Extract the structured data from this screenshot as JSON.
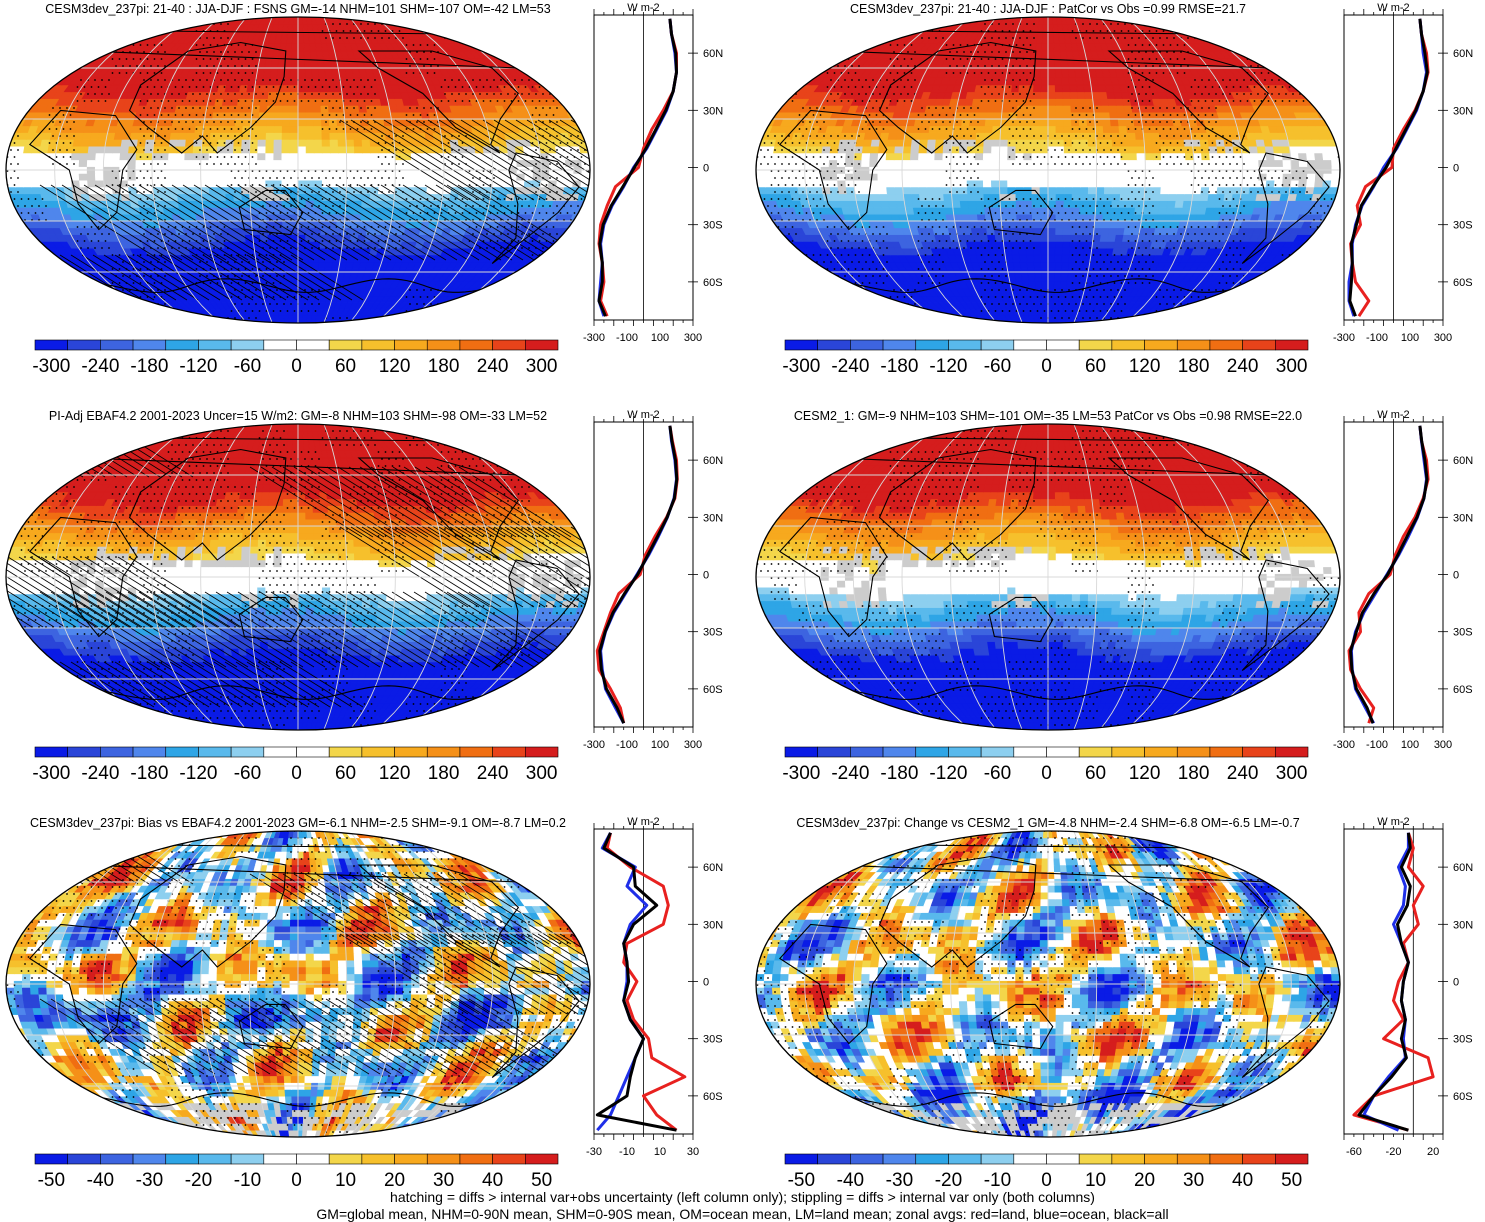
{
  "legend_colors": {
    "diverging_12": [
      "#0a1be6",
      "#2a45d8",
      "#3d64e0",
      "#4f86ec",
      "#2ea5e6",
      "#59b9ec",
      "#8dcfef",
      "#ffffff",
      "#ffffff",
      "#f3d64a",
      "#f6c02c",
      "#f7a91e",
      "#f59018",
      "#f06e12",
      "#e8431a",
      "#d51d1d"
    ],
    "land_grey": "#cccccc"
  },
  "zonal_line_colors": {
    "land": "#e8211f",
    "ocean": "#1f2fe8",
    "all": "#000000"
  },
  "footer": {
    "line1": "hatching = diffs > internal var+obs uncertainty (left column only); stippling = diffs > internal var only (both columns)",
    "line2": "GM=global mean, NHM=0-90N mean, SHM=0-90S mean, OM=ocean mean, LM=land mean; zonal avgs: red=land, blue=ocean, black=all"
  },
  "panels": [
    {
      "id": "p1",
      "title": "CESM3dev_237pi: 21-40 : JJA-DJF : FSNS GM=-14 NHM=101 SHM=-107 OM=-42 LM=53",
      "map_field": "seasonal",
      "hatched": true,
      "colorbar_ticks": [
        "-300",
        "-240",
        "-180",
        "-120",
        "-60",
        "0",
        "60",
        "120",
        "180",
        "240",
        "300"
      ],
      "zonal": {
        "units": "W m-2",
        "lat_ticks": [
          "60N",
          "30N",
          "0",
          "30S",
          "60S"
        ],
        "x_ticks": [
          "-300",
          "-100",
          "100",
          "300"
        ],
        "xlim": [
          -300,
          300
        ],
        "ylim": [
          -80,
          80
        ],
        "lat": [
          -78,
          -70,
          -60,
          -50,
          -40,
          -30,
          -20,
          -10,
          0,
          10,
          20,
          30,
          40,
          50,
          60,
          70,
          78
        ],
        "land": [
          -220,
          -260,
          -240,
          -250,
          -270,
          -260,
          -220,
          -170,
          -30,
          0,
          50,
          120,
          180,
          200,
          200,
          170,
          160
        ],
        "ocean": [
          -240,
          -270,
          -260,
          -250,
          -260,
          -240,
          -190,
          -120,
          -60,
          20,
          80,
          140,
          180,
          200,
          190,
          170,
          160
        ],
        "all": [
          -230,
          -270,
          -250,
          -250,
          -265,
          -245,
          -195,
          -125,
          -55,
          15,
          75,
          135,
          180,
          200,
          195,
          170,
          160
        ]
      }
    },
    {
      "id": "p2",
      "title": "CESM3dev_237pi: 21-40 : JJA-DJF : PatCor vs Obs =0.99 RMSE=21.7",
      "map_field": "seasonal",
      "hatched": false,
      "colorbar_ticks": [
        "-300",
        "-240",
        "-180",
        "-120",
        "-60",
        "0",
        "60",
        "120",
        "180",
        "240",
        "300"
      ],
      "zonal": {
        "units": "W m-2",
        "lat_ticks": [
          "60N",
          "30N",
          "0",
          "30S",
          "60S"
        ],
        "x_ticks": [
          "-300",
          "-100",
          "100",
          "300"
        ],
        "xlim": [
          -300,
          300
        ],
        "ylim": [
          -80,
          80
        ],
        "lat": [
          -78,
          -70,
          -60,
          -50,
          -40,
          -30,
          -20,
          -10,
          0,
          10,
          20,
          30,
          40,
          50,
          60,
          70,
          78
        ],
        "land": [
          -210,
          -150,
          -230,
          -250,
          -260,
          -200,
          -220,
          -170,
          -10,
          0,
          60,
          130,
          180,
          210,
          200,
          170,
          160
        ],
        "ocean": [
          -240,
          -270,
          -270,
          -250,
          -250,
          -230,
          -190,
          -120,
          -60,
          20,
          80,
          140,
          180,
          200,
          180,
          170,
          160
        ],
        "all": [
          -230,
          -265,
          -255,
          -250,
          -255,
          -225,
          -195,
          -125,
          -45,
          15,
          75,
          135,
          180,
          205,
          190,
          170,
          160
        ]
      }
    },
    {
      "id": "p3",
      "title": "PI-Adj EBAF4.2 2001-2023 Uncer=15 W/m2: GM=-8 NHM=103 SHM=-98 OM=-33 LM=52",
      "map_field": "seasonal",
      "hatched": true,
      "colorbar_ticks": [
        "-300",
        "-240",
        "-180",
        "-120",
        "-60",
        "0",
        "60",
        "120",
        "180",
        "240",
        "300"
      ],
      "zonal": {
        "units": "W m-2",
        "lat_ticks": [
          "60N",
          "30N",
          "0",
          "30S",
          "60S"
        ],
        "x_ticks": [
          "-300",
          "-100",
          "100",
          "300"
        ],
        "xlim": [
          -300,
          300
        ],
        "ylim": [
          -80,
          80
        ],
        "lat": [
          -78,
          -70,
          -60,
          -50,
          -40,
          -30,
          -20,
          -10,
          0,
          10,
          20,
          30,
          40,
          50,
          60,
          70,
          78
        ],
        "land": [
          -120,
          -140,
          -200,
          -270,
          -280,
          -240,
          -200,
          -150,
          -20,
          10,
          70,
          140,
          190,
          205,
          200,
          175,
          160
        ],
        "ocean": [
          -120,
          -170,
          -230,
          -250,
          -260,
          -230,
          -180,
          -110,
          -40,
          30,
          90,
          145,
          185,
          200,
          190,
          170,
          160
        ],
        "all": [
          -120,
          -160,
          -225,
          -255,
          -265,
          -232,
          -185,
          -115,
          -35,
          25,
          85,
          143,
          187,
          202,
          194,
          172,
          160
        ]
      }
    },
    {
      "id": "p4",
      "title": "CESM2_1: GM=-9 NHM=103 SHM=-101 OM=-35 LM=53 PatCor vs Obs =0.98 RMSE=22.0",
      "map_field": "seasonal",
      "hatched": false,
      "colorbar_ticks": [
        "-300",
        "-240",
        "-180",
        "-120",
        "-60",
        "0",
        "60",
        "120",
        "180",
        "240",
        "300"
      ],
      "zonal": {
        "units": "W m-2",
        "lat_ticks": [
          "60N",
          "30N",
          "0",
          "30S",
          "60S"
        ],
        "x_ticks": [
          "-300",
          "-100",
          "100",
          "300"
        ],
        "xlim": [
          -300,
          300
        ],
        "ylim": [
          -80,
          80
        ],
        "lat": [
          -78,
          -70,
          -60,
          -50,
          -40,
          -30,
          -20,
          -10,
          0,
          10,
          20,
          30,
          40,
          50,
          60,
          70,
          78
        ],
        "land": [
          -150,
          -120,
          -200,
          -260,
          -270,
          -200,
          -210,
          -150,
          -20,
          10,
          60,
          130,
          180,
          210,
          200,
          170,
          160
        ],
        "ocean": [
          -120,
          -170,
          -230,
          -250,
          -255,
          -230,
          -180,
          -110,
          -40,
          30,
          90,
          145,
          185,
          200,
          185,
          170,
          160
        ],
        "all": [
          -125,
          -160,
          -225,
          -252,
          -260,
          -225,
          -188,
          -118,
          -35,
          25,
          82,
          142,
          184,
          203,
          190,
          171,
          160
        ]
      }
    },
    {
      "id": "p5",
      "title": "CESM3dev_237pi: Bias vs EBAF4.2 2001-2023 GM=-6.1 NHM=-2.5 SHM=-9.1 OM=-8.7 LM=0.2",
      "map_field": "bias",
      "hatched": true,
      "colorbar_ticks": [
        "-50",
        "-40",
        "-30",
        "-20",
        "-10",
        "0",
        "10",
        "20",
        "30",
        "40",
        "50"
      ],
      "zonal": {
        "units": "W m-2",
        "lat_ticks": [
          "60N",
          "30N",
          "0",
          "30S",
          "60S"
        ],
        "x_ticks": [
          "-30",
          "-10",
          "10",
          "30"
        ],
        "xlim": [
          -30,
          30
        ],
        "ylim": [
          -80,
          80
        ],
        "lat": [
          -78,
          -70,
          -60,
          -50,
          -40,
          -30,
          -20,
          -10,
          0,
          10,
          20,
          30,
          40,
          50,
          60,
          70,
          78
        ],
        "land": [
          20,
          8,
          0,
          25,
          5,
          3,
          -6,
          -10,
          -4,
          -12,
          -10,
          12,
          15,
          12,
          -8,
          -22,
          -20
        ],
        "ocean": [
          -28,
          -20,
          -15,
          -10,
          -5,
          0,
          -8,
          -12,
          -10,
          -10,
          -12,
          -8,
          2,
          -10,
          -5,
          -25,
          -20
        ],
        "all": [
          20,
          -28,
          -10,
          -8,
          -5,
          0,
          -8,
          -12,
          -9,
          -10,
          -12,
          -6,
          8,
          -5,
          -6,
          -24,
          -20
        ]
      }
    },
    {
      "id": "p6",
      "title": "CESM3dev_237pi: Change vs CESM2_1 GM=-4.8 NHM=-2.4 SHM=-6.8 OM=-6.5 LM=-0.7",
      "map_field": "change",
      "hatched": false,
      "colorbar_ticks": [
        "-50",
        "-40",
        "-30",
        "-20",
        "-10",
        "0",
        "10",
        "20",
        "30",
        "40",
        "50"
      ],
      "zonal": {
        "units": "W m-2",
        "lat_ticks": [
          "60N",
          "30N",
          "0",
          "30S",
          "60S"
        ],
        "x_ticks": [
          "-60",
          "-20",
          "20"
        ],
        "xlim": [
          -70,
          30
        ],
        "ylim": [
          -80,
          80
        ],
        "lat": [
          -78,
          -70,
          -60,
          -50,
          -40,
          -30,
          -20,
          -10,
          0,
          10,
          20,
          30,
          40,
          50,
          60,
          70,
          78
        ],
        "land": [
          -5,
          -60,
          -40,
          20,
          15,
          -30,
          -10,
          -20,
          -15,
          -5,
          -10,
          5,
          0,
          10,
          -5,
          0,
          -5
        ],
        "ocean": [
          -15,
          -50,
          -40,
          -25,
          -8,
          -10,
          -8,
          -12,
          -10,
          -5,
          -12,
          -20,
          -10,
          -8,
          -15,
          -5,
          -5
        ],
        "all": [
          -5,
          -55,
          -40,
          -22,
          -7,
          -12,
          -8,
          -12,
          -10,
          -5,
          -12,
          -16,
          -6,
          -3,
          -12,
          -3,
          -5
        ]
      }
    }
  ]
}
